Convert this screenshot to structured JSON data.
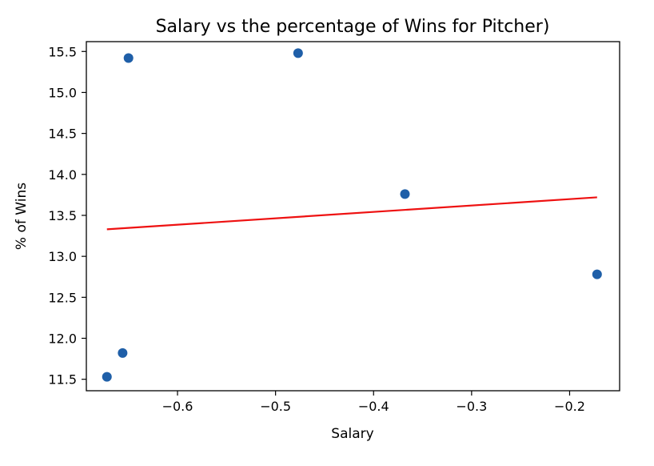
{
  "chart_data": {
    "type": "scatter",
    "title": "Salary vs the percentage of Wins for Pitcher)",
    "xlabel": "Salary",
    "ylabel": "% of Wins",
    "xlim": [
      -0.693,
      -0.149
    ],
    "ylim": [
      11.36,
      15.62
    ],
    "x_ticks": [
      -0.6,
      -0.5,
      -0.4,
      -0.3,
      -0.2
    ],
    "x_tick_labels": [
      "−0.6",
      "−0.5",
      "−0.4",
      "−0.3",
      "−0.2"
    ],
    "y_ticks": [
      11.5,
      12.0,
      12.5,
      13.0,
      13.5,
      14.0,
      14.5,
      15.0,
      15.5
    ],
    "y_tick_labels": [
      "11.5",
      "12.0",
      "12.5",
      "13.0",
      "13.5",
      "14.0",
      "14.5",
      "15.0",
      "15.5"
    ],
    "grid": false,
    "series": [
      {
        "kind": "scatter",
        "color": "#1f5fa8",
        "points": [
          {
            "x": -0.672,
            "y": 11.53
          },
          {
            "x": -0.656,
            "y": 11.82
          },
          {
            "x": -0.65,
            "y": 15.42
          },
          {
            "x": -0.477,
            "y": 15.48
          },
          {
            "x": -0.368,
            "y": 13.76
          },
          {
            "x": -0.172,
            "y": 12.78
          }
        ]
      },
      {
        "kind": "regression-line",
        "color": "#ee1111",
        "points": [
          {
            "x": -0.672,
            "y": 13.33
          },
          {
            "x": -0.172,
            "y": 13.72
          }
        ]
      }
    ]
  }
}
